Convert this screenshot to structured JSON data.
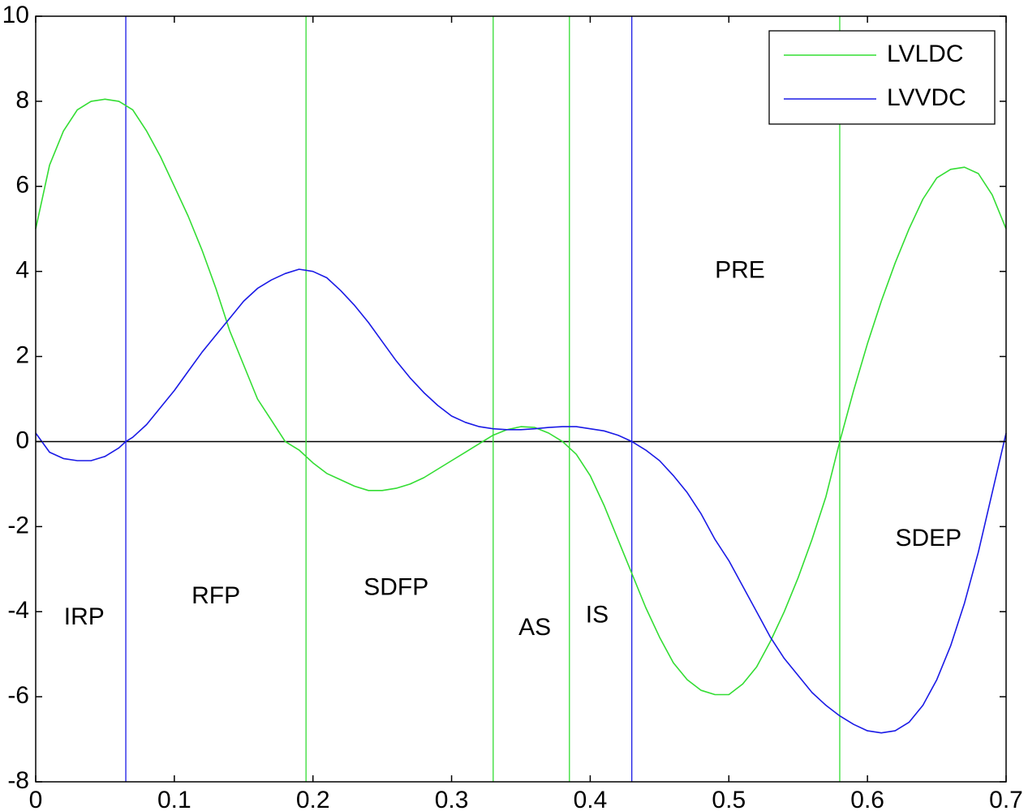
{
  "chart_data": {
    "type": "line",
    "title": "",
    "xlabel": "",
    "ylabel": "",
    "xlim": [
      0,
      0.7
    ],
    "ylim": [
      -8,
      10
    ],
    "x_ticks": [
      "0",
      "0.1",
      "0.2",
      "0.3",
      "0.4",
      "0.5",
      "0.6",
      "0.7"
    ],
    "y_ticks": [
      "-8",
      "-6",
      "-4",
      "-2",
      "0",
      "2",
      "4",
      "6",
      "8",
      "10"
    ],
    "x_tick_values": [
      0,
      0.1,
      0.2,
      0.3,
      0.4,
      0.5,
      0.6,
      0.7
    ],
    "y_tick_values": [
      -8,
      -6,
      -4,
      -2,
      0,
      2,
      4,
      6,
      8,
      10
    ],
    "grid": false,
    "legend_position": "top-right",
    "colors": {
      "lvldc": "#33dd33",
      "lvvdc": "#1a1ae6",
      "zero_line": "#000000"
    },
    "series": [
      {
        "name": "LVLDC",
        "color": "#33dd33",
        "points": [
          [
            0,
            5.0
          ],
          [
            0.01,
            6.5
          ],
          [
            0.02,
            7.3
          ],
          [
            0.03,
            7.8
          ],
          [
            0.04,
            8.0
          ],
          [
            0.05,
            8.05
          ],
          [
            0.06,
            8.0
          ],
          [
            0.07,
            7.8
          ],
          [
            0.08,
            7.3
          ],
          [
            0.09,
            6.7
          ],
          [
            0.1,
            6.0
          ],
          [
            0.11,
            5.3
          ],
          [
            0.12,
            4.5
          ],
          [
            0.13,
            3.6
          ],
          [
            0.14,
            2.6
          ],
          [
            0.15,
            1.8
          ],
          [
            0.16,
            1.0
          ],
          [
            0.17,
            0.5
          ],
          [
            0.18,
            0.0
          ],
          [
            0.19,
            -0.2
          ],
          [
            0.2,
            -0.5
          ],
          [
            0.21,
            -0.75
          ],
          [
            0.22,
            -0.9
          ],
          [
            0.23,
            -1.05
          ],
          [
            0.24,
            -1.15
          ],
          [
            0.25,
            -1.15
          ],
          [
            0.26,
            -1.1
          ],
          [
            0.27,
            -1.0
          ],
          [
            0.28,
            -0.85
          ],
          [
            0.29,
            -0.65
          ],
          [
            0.3,
            -0.45
          ],
          [
            0.31,
            -0.25
          ],
          [
            0.32,
            -0.05
          ],
          [
            0.33,
            0.15
          ],
          [
            0.34,
            0.28
          ],
          [
            0.35,
            0.35
          ],
          [
            0.36,
            0.33
          ],
          [
            0.37,
            0.2
          ],
          [
            0.38,
            0.0
          ],
          [
            0.39,
            -0.3
          ],
          [
            0.4,
            -0.8
          ],
          [
            0.41,
            -1.5
          ],
          [
            0.42,
            -2.3
          ],
          [
            0.43,
            -3.1
          ],
          [
            0.44,
            -3.9
          ],
          [
            0.45,
            -4.6
          ],
          [
            0.46,
            -5.2
          ],
          [
            0.47,
            -5.6
          ],
          [
            0.48,
            -5.85
          ],
          [
            0.49,
            -5.95
          ],
          [
            0.5,
            -5.95
          ],
          [
            0.51,
            -5.7
          ],
          [
            0.52,
            -5.3
          ],
          [
            0.53,
            -4.7
          ],
          [
            0.54,
            -4.0
          ],
          [
            0.55,
            -3.2
          ],
          [
            0.56,
            -2.3
          ],
          [
            0.57,
            -1.3
          ],
          [
            0.58,
            0.0
          ],
          [
            0.59,
            1.2
          ],
          [
            0.6,
            2.3
          ],
          [
            0.61,
            3.3
          ],
          [
            0.62,
            4.2
          ],
          [
            0.63,
            5.0
          ],
          [
            0.64,
            5.7
          ],
          [
            0.65,
            6.2
          ],
          [
            0.66,
            6.4
          ],
          [
            0.67,
            6.45
          ],
          [
            0.68,
            6.3
          ],
          [
            0.69,
            5.8
          ],
          [
            0.7,
            5.0
          ]
        ]
      },
      {
        "name": "LVVDC",
        "color": "#1a1ae6",
        "points": [
          [
            0,
            0.2
          ],
          [
            0.01,
            -0.25
          ],
          [
            0.02,
            -0.4
          ],
          [
            0.03,
            -0.45
          ],
          [
            0.04,
            -0.45
          ],
          [
            0.05,
            -0.35
          ],
          [
            0.06,
            -0.15
          ],
          [
            0.065,
            0.0
          ],
          [
            0.07,
            0.1
          ],
          [
            0.08,
            0.4
          ],
          [
            0.09,
            0.8
          ],
          [
            0.1,
            1.2
          ],
          [
            0.11,
            1.65
          ],
          [
            0.12,
            2.1
          ],
          [
            0.13,
            2.5
          ],
          [
            0.14,
            2.9
          ],
          [
            0.15,
            3.3
          ],
          [
            0.16,
            3.6
          ],
          [
            0.17,
            3.8
          ],
          [
            0.18,
            3.95
          ],
          [
            0.19,
            4.05
          ],
          [
            0.2,
            4.0
          ],
          [
            0.21,
            3.85
          ],
          [
            0.22,
            3.55
          ],
          [
            0.23,
            3.2
          ],
          [
            0.24,
            2.8
          ],
          [
            0.25,
            2.35
          ],
          [
            0.26,
            1.9
          ],
          [
            0.27,
            1.5
          ],
          [
            0.28,
            1.15
          ],
          [
            0.29,
            0.85
          ],
          [
            0.3,
            0.6
          ],
          [
            0.31,
            0.45
          ],
          [
            0.32,
            0.35
          ],
          [
            0.33,
            0.3
          ],
          [
            0.34,
            0.28
          ],
          [
            0.35,
            0.28
          ],
          [
            0.36,
            0.3
          ],
          [
            0.37,
            0.33
          ],
          [
            0.38,
            0.35
          ],
          [
            0.39,
            0.35
          ],
          [
            0.4,
            0.3
          ],
          [
            0.41,
            0.25
          ],
          [
            0.42,
            0.15
          ],
          [
            0.43,
            0.0
          ],
          [
            0.44,
            -0.2
          ],
          [
            0.45,
            -0.45
          ],
          [
            0.46,
            -0.8
          ],
          [
            0.47,
            -1.2
          ],
          [
            0.48,
            -1.7
          ],
          [
            0.49,
            -2.3
          ],
          [
            0.5,
            -2.8
          ],
          [
            0.51,
            -3.4
          ],
          [
            0.52,
            -4.0
          ],
          [
            0.53,
            -4.6
          ],
          [
            0.54,
            -5.1
          ],
          [
            0.55,
            -5.5
          ],
          [
            0.56,
            -5.9
          ],
          [
            0.57,
            -6.2
          ],
          [
            0.58,
            -6.45
          ],
          [
            0.59,
            -6.65
          ],
          [
            0.6,
            -6.8
          ],
          [
            0.61,
            -6.85
          ],
          [
            0.62,
            -6.8
          ],
          [
            0.63,
            -6.6
          ],
          [
            0.64,
            -6.2
          ],
          [
            0.65,
            -5.6
          ],
          [
            0.66,
            -4.8
          ],
          [
            0.67,
            -3.8
          ],
          [
            0.68,
            -2.6
          ],
          [
            0.69,
            -1.2
          ],
          [
            0.7,
            0.2
          ]
        ]
      }
    ],
    "vertical_markers": [
      {
        "x": 0.065,
        "color": "#1a1ae6"
      },
      {
        "x": 0.195,
        "color": "#33dd33"
      },
      {
        "x": 0.33,
        "color": "#33dd33"
      },
      {
        "x": 0.385,
        "color": "#33dd33"
      },
      {
        "x": 0.43,
        "color": "#1a1ae6"
      },
      {
        "x": 0.58,
        "color": "#33dd33"
      }
    ],
    "annotations": [
      {
        "text": "IRP",
        "x": 0.035,
        "y": -4.15
      },
      {
        "text": "RFP",
        "x": 0.13,
        "y": -3.65
      },
      {
        "text": "SDFP",
        "x": 0.26,
        "y": -3.45
      },
      {
        "text": "AS",
        "x": 0.36,
        "y": -4.4
      },
      {
        "text": "IS",
        "x": 0.405,
        "y": -4.1
      },
      {
        "text": "PRE",
        "x": 0.508,
        "y": 4.0
      },
      {
        "text": "SDEP",
        "x": 0.644,
        "y": -2.3
      }
    ]
  }
}
